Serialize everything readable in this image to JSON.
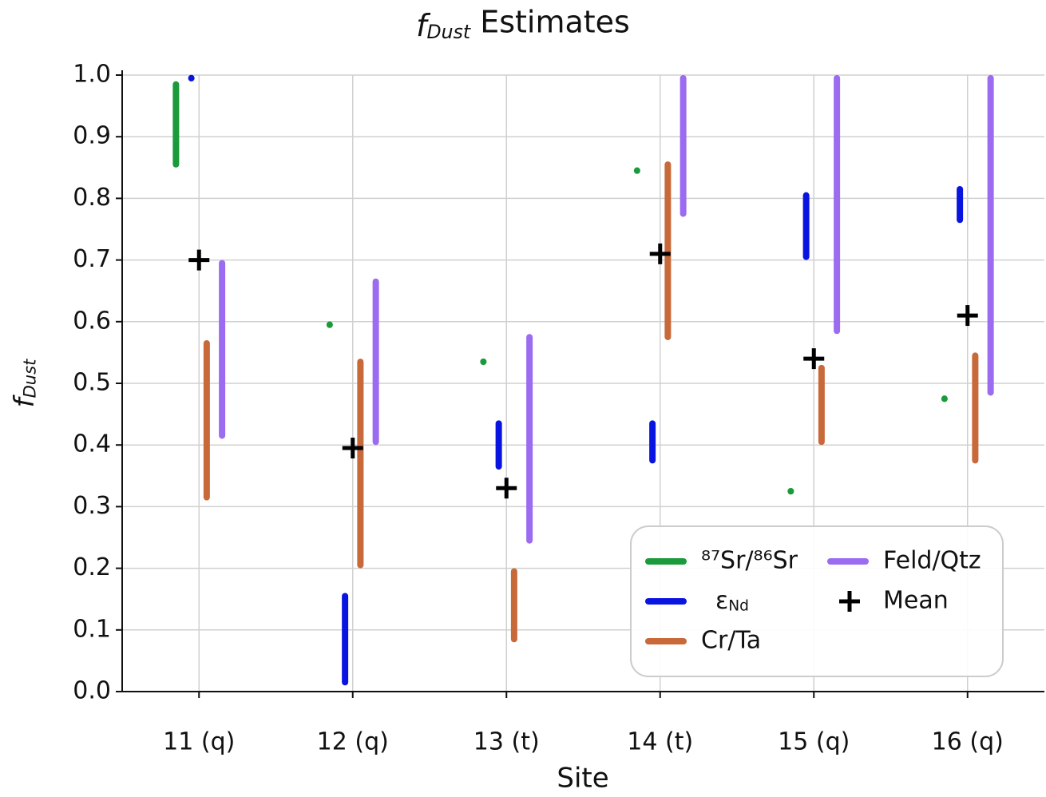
{
  "chart_data": {
    "type": "range",
    "title": "fDust Estimates",
    "x_label": "Site",
    "y_label": "fDust",
    "categories": [
      "11 (q)",
      "12 (q)",
      "13 (t)",
      "14 (t)",
      "15 (q)",
      "16 (q)"
    ],
    "series": [
      {
        "name": "⁸⁷Sr/⁸⁶Sr",
        "color": "#1a9a3a",
        "low": [
          0.85,
          0.59,
          0.53,
          0.84,
          0.32,
          0.47
        ],
        "high": [
          0.99,
          0.6,
          0.54,
          0.85,
          0.33,
          0.48
        ]
      },
      {
        "name": "εNd",
        "color": "#0a14e0",
        "low": [
          0.99,
          0.01,
          0.36,
          0.37,
          0.7,
          0.76
        ],
        "high": [
          1.0,
          0.16,
          0.44,
          0.44,
          0.81,
          0.82
        ]
      },
      {
        "name": "Cr/Ta",
        "color": "#c8693a",
        "low": [
          0.31,
          0.2,
          0.08,
          0.57,
          0.4,
          0.37
        ],
        "high": [
          0.57,
          0.54,
          0.2,
          0.86,
          0.53,
          0.55
        ]
      },
      {
        "name": "Feld/Qtz",
        "color": "#9b6bf0",
        "low": [
          0.41,
          0.4,
          0.24,
          0.77,
          0.58,
          0.48
        ],
        "high": [
          0.7,
          0.67,
          0.58,
          1.0,
          1.0,
          1.0
        ]
      },
      {
        "name": "Mean",
        "color": "#000000",
        "marker": "+",
        "values": [
          0.7,
          0.395,
          0.33,
          0.71,
          0.54,
          0.61
        ]
      }
    ],
    "ylim": [
      0,
      1.0
    ],
    "yticks": [
      {
        "value": 0,
        "label": "0.0"
      },
      0.1,
      0.2,
      0.3,
      0.4,
      0.5,
      0.6,
      0.7,
      0.8,
      0.9,
      {
        "value": 1.0,
        "label": "1.0"
      }
    ],
    "grid": true,
    "legend": "lower right"
  }
}
